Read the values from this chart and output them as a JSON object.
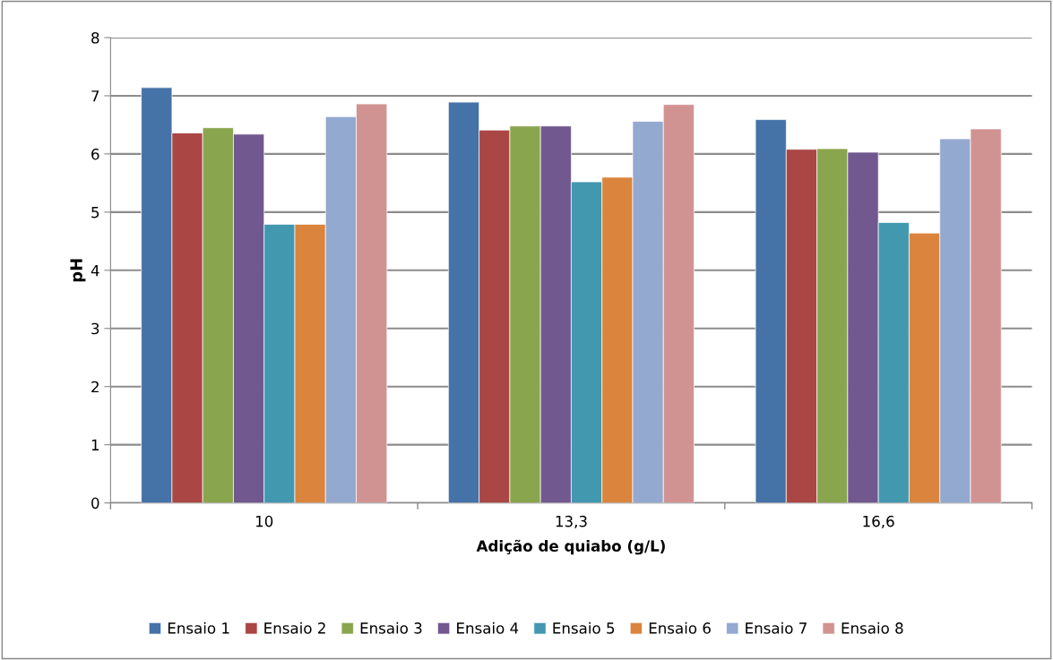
{
  "chart_data": {
    "type": "bar",
    "xlabel": "Adição de quiabo (g/L)",
    "ylabel": "pH",
    "categories": [
      "10",
      "13,3",
      "16,6"
    ],
    "series": [
      {
        "name": "Ensaio 1",
        "color": "#4572a7",
        "values": [
          7.14,
          6.89,
          6.59
        ]
      },
      {
        "name": "Ensaio 2",
        "color": "#aa4643",
        "values": [
          6.36,
          6.41,
          6.08
        ]
      },
      {
        "name": "Ensaio 3",
        "color": "#89a54e",
        "values": [
          6.45,
          6.48,
          6.09
        ]
      },
      {
        "name": "Ensaio 4",
        "color": "#71588f",
        "values": [
          6.34,
          6.48,
          6.03
        ]
      },
      {
        "name": "Ensaio 5",
        "color": "#4198af",
        "values": [
          4.79,
          5.52,
          4.82
        ]
      },
      {
        "name": "Ensaio 6",
        "color": "#db843d",
        "values": [
          4.79,
          5.6,
          4.64
        ]
      },
      {
        "name": "Ensaio 7",
        "color": "#93a9cf",
        "values": [
          6.64,
          6.56,
          6.26
        ]
      },
      {
        "name": "Ensaio 8",
        "color": "#d19392",
        "values": [
          6.86,
          6.85,
          6.43
        ]
      }
    ],
    "ylim": [
      0,
      8
    ],
    "yticks": [
      0,
      1,
      2,
      3,
      4,
      5,
      6,
      7,
      8
    ],
    "grid": "y",
    "legend": "bottom"
  }
}
